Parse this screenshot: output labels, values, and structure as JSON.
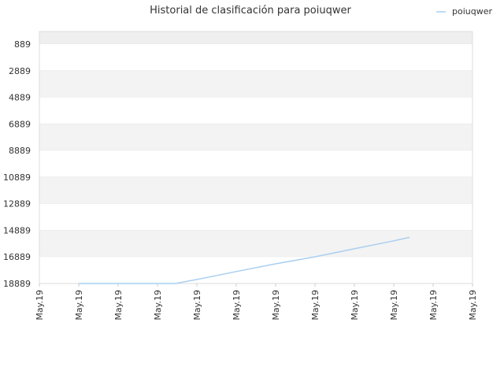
{
  "chart_data": {
    "type": "line",
    "title": "Historial de clasificación para poiuqwer",
    "xlabel": "",
    "ylabel": "",
    "y_inverted": true,
    "ylim": [
      889,
      18889
    ],
    "y_ticks": [
      "889",
      "2889",
      "4889",
      "6889",
      "8889",
      "10889",
      "12889",
      "14889",
      "16889",
      "18889"
    ],
    "y_tick_values": [
      889,
      2889,
      4889,
      6889,
      8889,
      10889,
      12889,
      14889,
      16889,
      18889
    ],
    "x_tick_labels": [
      "May.19",
      "May.19",
      "May.19",
      "May.19",
      "May.19",
      "May.19",
      "May.19",
      "May.19",
      "May.19",
      "May.19",
      "May.19",
      "May.19"
    ],
    "legend_position": "top-right",
    "band_colors": [
      "#efefef",
      "#ffffff",
      "#f3f3f3",
      "#ffffff",
      "#f3f3f3",
      "#ffffff",
      "#f3f3f3",
      "#ffffff",
      "#f3f3f3",
      "#ffffff"
    ],
    "series": [
      {
        "name": "poiuqwer",
        "color": "#a9cff0",
        "x": [
          1,
          2,
          3,
          3.45,
          4,
          5,
          6,
          7,
          8,
          9,
          9.4
        ],
        "y": [
          18889,
          18889,
          18889,
          18889,
          18589,
          17989,
          17409,
          16879,
          16279,
          15679,
          15419
        ]
      }
    ]
  }
}
